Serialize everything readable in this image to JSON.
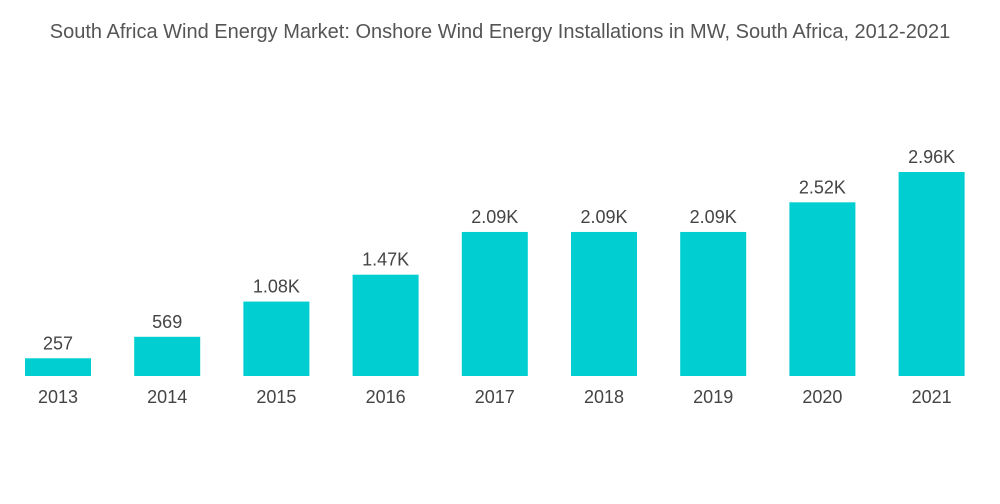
{
  "chart_data": {
    "type": "bar",
    "title": "South Africa Wind Energy Market: Onshore Wind Energy Installations in MW, South Africa, 2012-2021",
    "categories": [
      "2013",
      "2014",
      "2015",
      "2016",
      "2017",
      "2018",
      "2019",
      "2020",
      "2021"
    ],
    "values": [
      257,
      569,
      1080,
      1470,
      2090,
      2090,
      2090,
      2520,
      2960
    ],
    "data_labels": [
      "257",
      "569",
      "1.08K",
      "1.47K",
      "2.09K",
      "2.09K",
      "2.09K",
      "2.52K",
      "2.96K"
    ],
    "xlabel": "",
    "ylabel": "",
    "ylim": [
      0,
      2960
    ],
    "grid": false,
    "bar_color": "#00CED1"
  }
}
